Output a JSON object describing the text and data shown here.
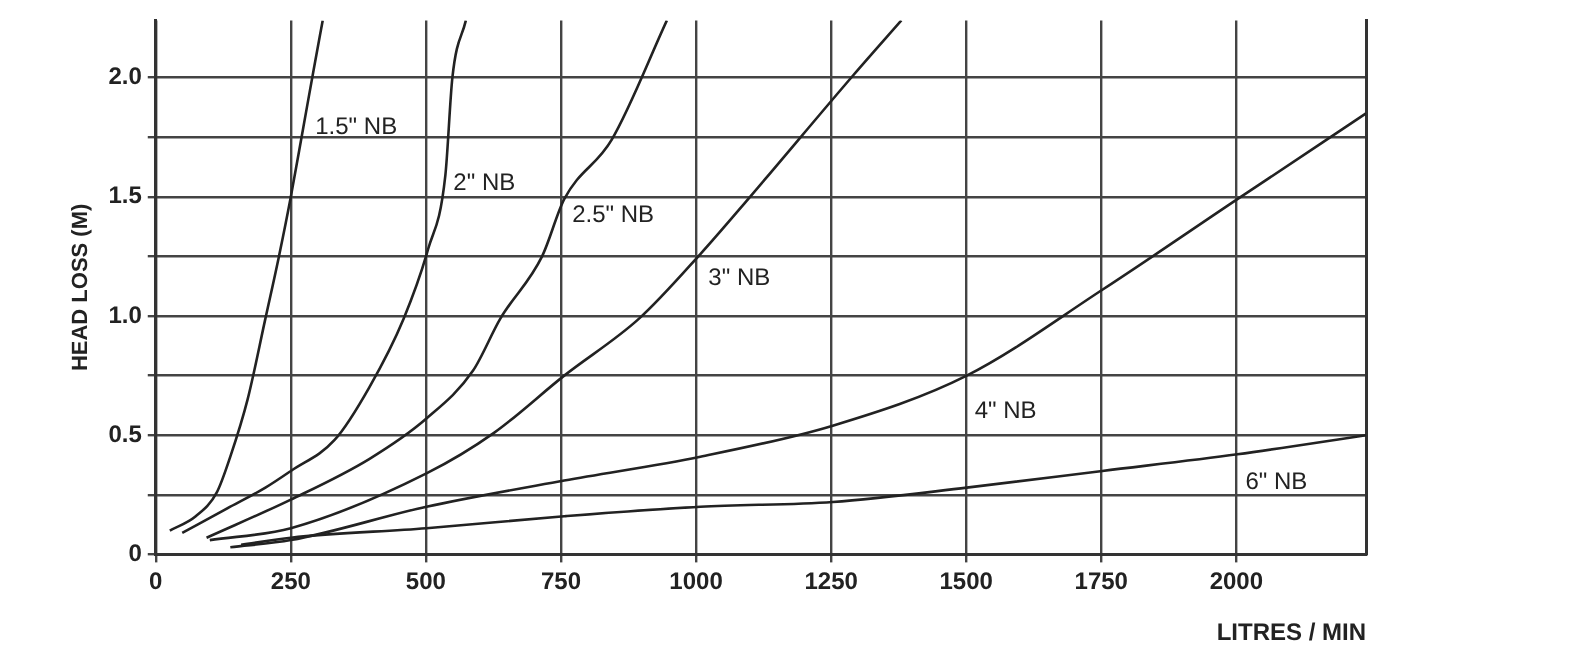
{
  "chart_data": {
    "type": "line",
    "xlabel": "LITRES / MIN",
    "ylabel": "HEAD LOSS (M)",
    "xlim": [
      0,
      2240
    ],
    "ylim": [
      0,
      2.24
    ],
    "xticks": [
      0,
      250,
      500,
      750,
      1000,
      1250,
      1500,
      1750,
      2000
    ],
    "yticks": [
      0,
      {
        "value": 0.25,
        "label": null
      },
      0.5,
      {
        "value": 0.75,
        "label": null
      },
      {
        "value": 1,
        "label": "1.0"
      },
      {
        "value": 1.25,
        "label": null
      },
      1.5,
      {
        "value": 1.75,
        "label": null
      },
      {
        "value": 2,
        "label": "2.0"
      }
    ],
    "grid": true,
    "legend": false,
    "marker": "none",
    "line_style": "solid",
    "series": [
      {
        "name": "1.5\" NB",
        "color": "#222222",
        "x": [
          26,
          74,
          113,
          138,
          170,
          203,
          228,
          250,
          273,
          292,
          309
        ],
        "values": [
          0.1,
          0.16,
          0.26,
          0.41,
          0.65,
          0.99,
          1.25,
          1.5,
          1.79,
          2.03,
          2.24
        ]
      },
      {
        "name": "2\" NB",
        "color": "#222222",
        "x": [
          49,
          138,
          203,
          250,
          331,
          395,
          459,
          504,
          536,
          549,
          574
        ],
        "values": [
          0.09,
          0.2,
          0.28,
          0.35,
          0.48,
          0.7,
          0.99,
          1.28,
          1.59,
          2.0,
          2.24
        ]
      },
      {
        "name": "2.5\" NB",
        "color": "#222222",
        "x": [
          94,
          250,
          395,
          501,
          587,
          638,
          715,
          756,
          844,
          946
        ],
        "values": [
          0.07,
          0.23,
          0.4,
          0.57,
          0.77,
          0.99,
          1.25,
          1.49,
          1.74,
          2.24
        ]
      },
      {
        "name": "3\" NB",
        "color": "#222222",
        "x": [
          100,
          250,
          501,
          626,
          756,
          895,
          1008,
          1100,
          1291,
          1380
        ],
        "values": [
          0.06,
          0.11,
          0.34,
          0.51,
          0.75,
          0.99,
          1.26,
          1.5,
          2.01,
          2.24
        ]
      },
      {
        "name": "4\" NB",
        "color": "#222222",
        "x": [
          138,
          250,
          501,
          756,
          1008,
          1253,
          1501,
          1752,
          2002,
          2240
        ],
        "values": [
          0.03,
          0.06,
          0.2,
          0.31,
          0.41,
          0.54,
          0.75,
          1.11,
          1.49,
          1.85
        ]
      },
      {
        "name": "6\" NB",
        "color": "#222222",
        "x": [
          158,
          250,
          501,
          756,
          1008,
          1253,
          1501,
          1752,
          2002,
          2240
        ],
        "values": [
          0.04,
          0.07,
          0.11,
          0.16,
          0.2,
          0.22,
          0.28,
          0.35,
          0.42,
          0.5
        ]
      }
    ]
  }
}
